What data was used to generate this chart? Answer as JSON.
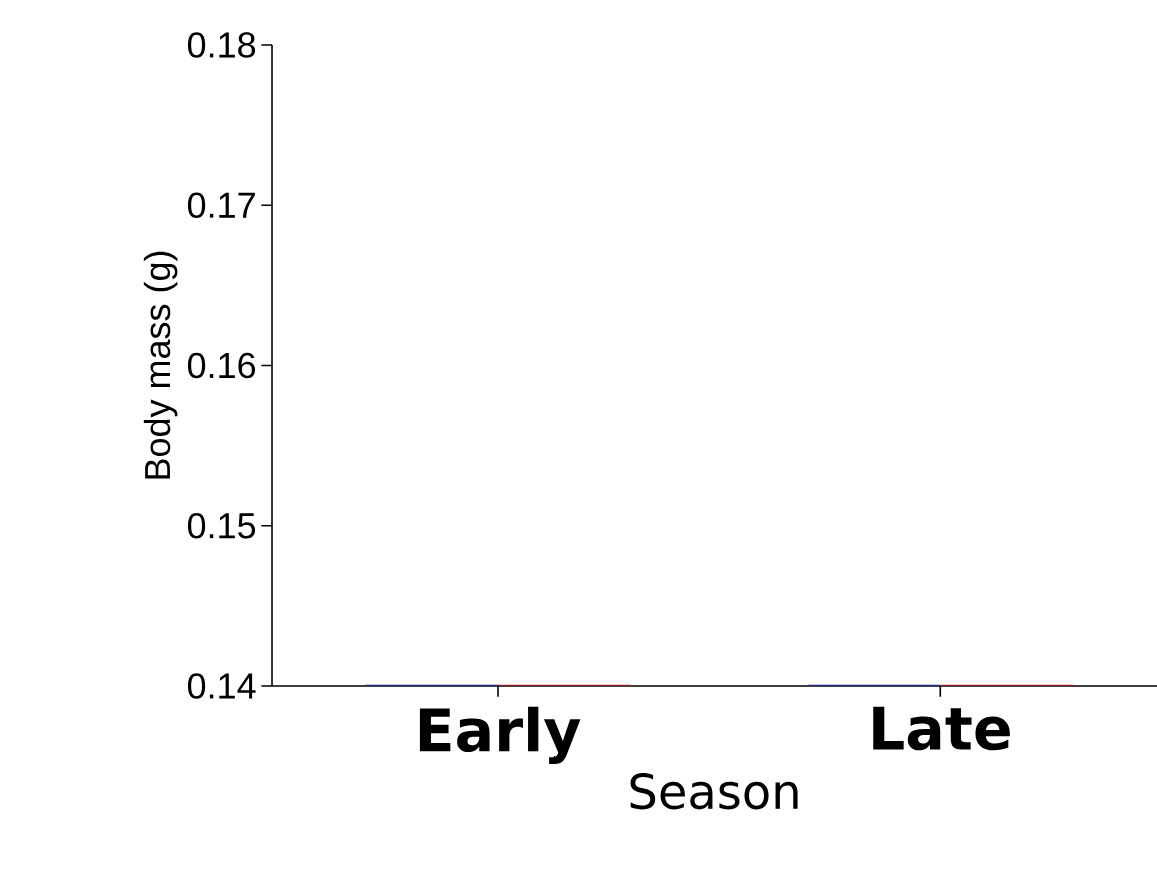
{
  "chart_data": {
    "type": "bar",
    "xlabel": "Season",
    "ylabel": "Body mass (g)",
    "categories": [
      "Early",
      "Late"
    ],
    "series": [
      {
        "color": "#1f2a8c",
        "values": [
          0.14,
          0.14
        ]
      },
      {
        "color": "#8c1f1f",
        "values": [
          0.14,
          0.14
        ]
      }
    ],
    "ylim": [
      0.14,
      0.18
    ],
    "yticks": [
      0.14,
      0.15,
      0.16,
      0.17,
      0.18
    ]
  }
}
